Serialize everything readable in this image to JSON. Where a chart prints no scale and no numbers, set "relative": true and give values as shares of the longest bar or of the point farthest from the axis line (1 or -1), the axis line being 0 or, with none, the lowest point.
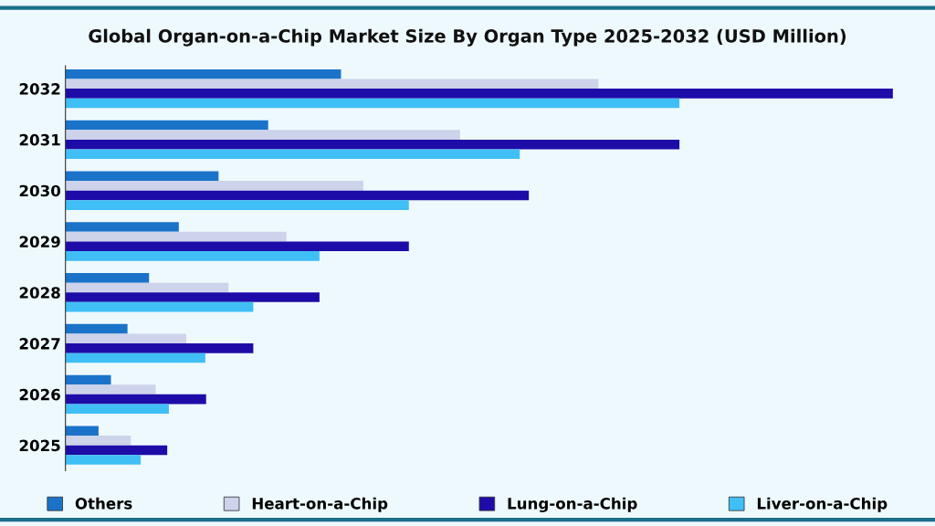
{
  "chart_data": {
    "type": "bar",
    "orientation": "horizontal",
    "relative": true,
    "title": "Global Organ-on-a-Chip Market Size By Organ Type 2025-2032 (USD Million)",
    "categories": [
      "2032",
      "2031",
      "2030",
      "2029",
      "2028",
      "2027",
      "2026",
      "2025"
    ],
    "series": [
      {
        "name": "Others",
        "color": "#1a73c9",
        "values": [
          0.333,
          0.245,
          0.185,
          0.137,
          0.101,
          0.075,
          0.055,
          0.04
        ]
      },
      {
        "name": "Heart-on-a-Chip",
        "color": "#cdd3ea",
        "values": [
          0.644,
          0.477,
          0.36,
          0.267,
          0.197,
          0.146,
          0.109,
          0.079
        ]
      },
      {
        "name": "Lung-on-a-Chip",
        "color": "#1e0ca8",
        "values": [
          1,
          0.742,
          0.56,
          0.415,
          0.307,
          0.227,
          0.17,
          0.123
        ]
      },
      {
        "name": "Liver-on-a-Chip",
        "color": "#3fbff5",
        "values": [
          0.742,
          0.549,
          0.415,
          0.307,
          0.227,
          0.169,
          0.125,
          0.091
        ]
      }
    ],
    "legend": "bottom",
    "grid": false
  }
}
